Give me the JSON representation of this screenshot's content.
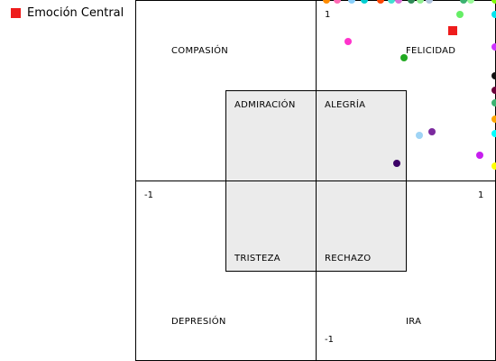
{
  "legend": {
    "label": "Emoción Central",
    "color": "#ee1c1c"
  },
  "chart_data": {
    "type": "scatter",
    "title": "",
    "xlabel": "",
    "ylabel": "",
    "xlim": [
      -1,
      1
    ],
    "ylim": [
      -1,
      1
    ],
    "ticks": {
      "x_min": "-1",
      "x_max": "1",
      "y_max": "1",
      "y_min": "-1"
    },
    "region_labels": {
      "compasion": "COMPASIÓN",
      "felicidad": "FELICIDAD",
      "admiracion": "ADMIRACIÓN",
      "alegria": "ALEGRÍA",
      "tristeza": "TRISTEZA",
      "rechazo": "RECHAZO",
      "depresion": "DEPRESIÓN",
      "ira": "IRA"
    },
    "central_emotion": {
      "x": 0.76,
      "y": 0.83,
      "color": "#ee1c1c"
    },
    "points": [
      {
        "x": 0.06,
        "y": 1.0,
        "color": "#ff8c00"
      },
      {
        "x": 0.12,
        "y": 1.0,
        "color": "#ff69b4"
      },
      {
        "x": 0.2,
        "y": 1.0,
        "color": "#87cefa"
      },
      {
        "x": 0.27,
        "y": 1.0,
        "color": "#00ced1"
      },
      {
        "x": 0.36,
        "y": 1.0,
        "color": "#ff4500"
      },
      {
        "x": 0.42,
        "y": 1.0,
        "color": "#40e0d0"
      },
      {
        "x": 0.46,
        "y": 1.0,
        "color": "#da70d6"
      },
      {
        "x": 0.53,
        "y": 1.0,
        "color": "#2e8b57"
      },
      {
        "x": 0.58,
        "y": 1.0,
        "color": "#90ee90"
      },
      {
        "x": 0.63,
        "y": 1.0,
        "color": "#b0c4de"
      },
      {
        "x": 0.82,
        "y": 1.0,
        "color": "#3cb371"
      },
      {
        "x": 0.86,
        "y": 1.0,
        "color": "#98fb98"
      },
      {
        "x": 0.995,
        "y": 1.0,
        "color": "#7fff00"
      },
      {
        "x": 0.8,
        "y": 0.92,
        "color": "#66ee66"
      },
      {
        "x": 0.18,
        "y": 0.77,
        "color": "#ff33cc"
      },
      {
        "x": 0.49,
        "y": 0.68,
        "color": "#22aa22"
      },
      {
        "x": 0.995,
        "y": 0.92,
        "color": "#00e5ee"
      },
      {
        "x": 0.995,
        "y": 0.74,
        "color": "#cc33ff"
      },
      {
        "x": 0.995,
        "y": 0.58,
        "color": "#111111"
      },
      {
        "x": 0.995,
        "y": 0.5,
        "color": "#6b003a"
      },
      {
        "x": 0.995,
        "y": 0.43,
        "color": "#3cb371"
      },
      {
        "x": 0.995,
        "y": 0.34,
        "color": "#ffa500"
      },
      {
        "x": 0.995,
        "y": 0.26,
        "color": "#00ffff"
      },
      {
        "x": 0.995,
        "y": 0.08,
        "color": "#ffff00"
      },
      {
        "x": 0.91,
        "y": 0.14,
        "color": "#c71eef"
      },
      {
        "x": 0.645,
        "y": 0.27,
        "color": "#7b2a9e"
      },
      {
        "x": 0.575,
        "y": 0.25,
        "color": "#9fd4f5"
      },
      {
        "x": 0.45,
        "y": 0.095,
        "color": "#3b0066"
      }
    ]
  }
}
